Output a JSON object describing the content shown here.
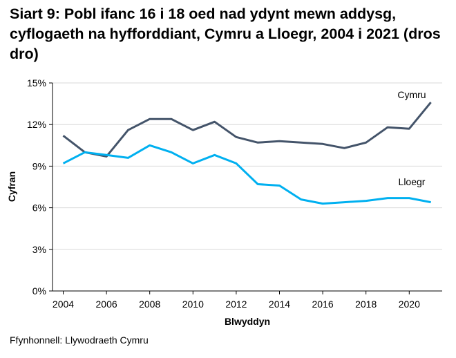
{
  "chart_data": {
    "type": "line",
    "title": "Siart 9: Pobl ifanc 16 i 18 oed nad ydynt mewn addysg, cyflogaeth na hyfforddiant, Cymru a Lloegr, 2004 i 2021 (dros dro)",
    "xlabel": "Blwyddyn",
    "ylabel": "Cyfran",
    "ylim": [
      0,
      15
    ],
    "xlim": [
      2004,
      2021
    ],
    "yticks": [
      "0%",
      "3%",
      "6%",
      "9%",
      "12%",
      "15%"
    ],
    "xticks": [
      "2004",
      "2006",
      "2008",
      "2010",
      "2012",
      "2014",
      "2016",
      "2018",
      "2020"
    ],
    "grid": true,
    "x": [
      2004,
      2005,
      2006,
      2007,
      2008,
      2009,
      2010,
      2011,
      2012,
      2013,
      2014,
      2015,
      2016,
      2017,
      2018,
      2019,
      2020,
      2021
    ],
    "series": [
      {
        "name": "Cymru",
        "color": "#44546a",
        "values": [
          11.2,
          10.0,
          9.7,
          11.6,
          12.4,
          12.4,
          11.6,
          12.2,
          11.1,
          10.7,
          10.8,
          10.7,
          10.6,
          10.3,
          10.7,
          11.8,
          11.7,
          13.6
        ]
      },
      {
        "name": "Lloegr",
        "color": "#00b0f0",
        "values": [
          9.2,
          10.0,
          9.8,
          9.6,
          10.5,
          10.0,
          9.2,
          9.8,
          9.2,
          7.7,
          7.6,
          6.6,
          6.3,
          6.4,
          6.5,
          6.7,
          6.7,
          6.4
        ]
      }
    ]
  },
  "source": "Ffynhonnell: Llywodraeth Cymru"
}
